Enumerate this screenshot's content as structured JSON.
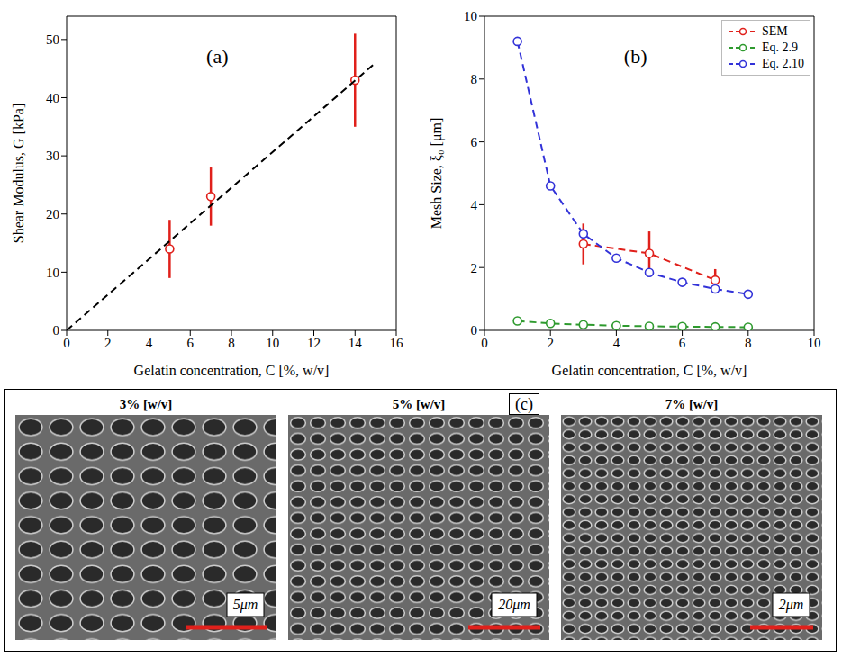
{
  "chart_data": [
    {
      "type": "scatter",
      "annotation": "(a)",
      "x_label": "Gelatin concentration, C [%, w/v]",
      "y_label": "Shear Modulus, G [kPa]",
      "xlim": [
        0,
        16
      ],
      "xticks": [
        0,
        2,
        4,
        6,
        8,
        10,
        12,
        14,
        16
      ],
      "ylim": [
        0,
        54
      ],
      "yticks": [
        0,
        10,
        20,
        30,
        40,
        50
      ],
      "grid": false,
      "series": [
        {
          "type": "scatter",
          "color": "#e0201b",
          "marker": "open_circle",
          "x": [
            5,
            7,
            14
          ],
          "values": [
            14,
            23,
            43
          ],
          "errors": [
            5,
            5,
            8
          ]
        },
        {
          "type": "line",
          "color": "#000000",
          "line_style": "dashed",
          "x": [
            0,
            15
          ],
          "values": [
            0,
            46
          ]
        }
      ]
    },
    {
      "type": "scatter",
      "annotation": "(b)",
      "x_label": "Gelatin concentration, C [%, w/v]",
      "y_label": "Mesh Size, ξ₀ [μm]",
      "xlim": [
        0,
        10
      ],
      "xticks": [
        0,
        2,
        4,
        6,
        8,
        10
      ],
      "ylim": [
        0,
        10
      ],
      "yticks": [
        0,
        2,
        4,
        6,
        8,
        10
      ],
      "grid": false,
      "legend": "upper right",
      "series": [
        {
          "name": "SEM",
          "color": "#e0201b",
          "marker": "open_circle",
          "line_style": "dashed",
          "x": [
            3,
            5,
            7
          ],
          "values": [
            2.75,
            2.45,
            1.6
          ],
          "errors": [
            0.65,
            0.7,
            0.35
          ]
        },
        {
          "name": "Eq. 2.9",
          "color": "#2e9a2e",
          "marker": "open_circle",
          "line_style": "dashed",
          "x": [
            1,
            2,
            3,
            4,
            5,
            6,
            7,
            8
          ],
          "values": [
            0.3,
            0.22,
            0.18,
            0.15,
            0.13,
            0.12,
            0.11,
            0.1
          ]
        },
        {
          "name": "Eq. 2.10",
          "color": "#3232d8",
          "marker": "open_circle",
          "line_style": "dashed",
          "x": [
            1,
            2,
            3,
            4,
            5,
            6,
            7,
            8
          ],
          "values": [
            9.2,
            4.6,
            3.07,
            2.3,
            1.84,
            1.53,
            1.32,
            1.15
          ]
        }
      ]
    }
  ],
  "images": {
    "label": "(c)",
    "panels": [
      {
        "title": "3% [w/v]",
        "scale_bar": "5μm"
      },
      {
        "title": "5% [w/v]",
        "scale_bar": "20μm"
      },
      {
        "title": "7% [w/v]",
        "scale_bar": "2μm"
      }
    ]
  }
}
